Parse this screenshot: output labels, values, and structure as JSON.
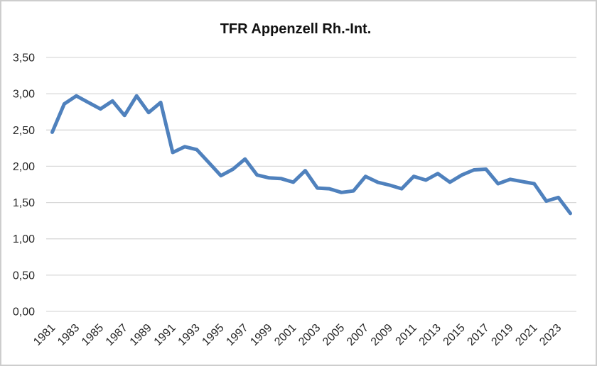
{
  "chart_data": {
    "type": "line",
    "title": "TFR Appenzell Rh.-Int.",
    "x": [
      1981,
      1982,
      1983,
      1984,
      1985,
      1986,
      1987,
      1988,
      1989,
      1990,
      1991,
      1992,
      1993,
      1994,
      1995,
      1996,
      1997,
      1998,
      1999,
      2000,
      2001,
      2002,
      2003,
      2004,
      2005,
      2006,
      2007,
      2008,
      2009,
      2010,
      2011,
      2012,
      2013,
      2014,
      2015,
      2016,
      2017,
      2018,
      2019,
      2020,
      2021,
      2022,
      2023,
      2024
    ],
    "series": [
      {
        "name": "TFR",
        "values": [
          2.47,
          2.86,
          2.97,
          2.88,
          2.79,
          2.9,
          2.7,
          2.97,
          2.74,
          2.88,
          2.19,
          2.27,
          2.23,
          2.05,
          1.87,
          1.96,
          2.1,
          1.88,
          1.84,
          1.83,
          1.78,
          1.94,
          1.7,
          1.69,
          1.64,
          1.66,
          1.86,
          1.78,
          1.74,
          1.69,
          1.86,
          1.81,
          1.9,
          1.78,
          1.88,
          1.95,
          1.96,
          1.76,
          1.82,
          1.79,
          1.76,
          1.52,
          1.57,
          1.35
        ]
      }
    ],
    "xlabel": "",
    "ylabel": "",
    "ylim": [
      0,
      3.5
    ],
    "yticks": [
      {
        "value": 3.5,
        "label": "3,50"
      },
      {
        "value": 3.0,
        "label": "3,00"
      },
      {
        "value": 2.5,
        "label": "2,50"
      },
      {
        "value": 2.0,
        "label": "2,00"
      },
      {
        "value": 1.5,
        "label": "1,50"
      },
      {
        "value": 1.0,
        "label": "1,00"
      },
      {
        "value": 0.5,
        "label": "0,50"
      },
      {
        "value": 0.0,
        "label": "0,00"
      }
    ],
    "xtick_labels": [
      "1981",
      "1983",
      "1985",
      "1987",
      "1989",
      "1991",
      "1993",
      "1995",
      "1997",
      "1999",
      "2001",
      "2003",
      "2005",
      "2007",
      "2009",
      "2011",
      "2013",
      "2015",
      "2017",
      "2019",
      "2021",
      "2023"
    ],
    "grid": true,
    "legend": "none",
    "line_color": "#4F81BD",
    "grid_color": "#D9D9D9",
    "axis_label_color": "#262626"
  }
}
